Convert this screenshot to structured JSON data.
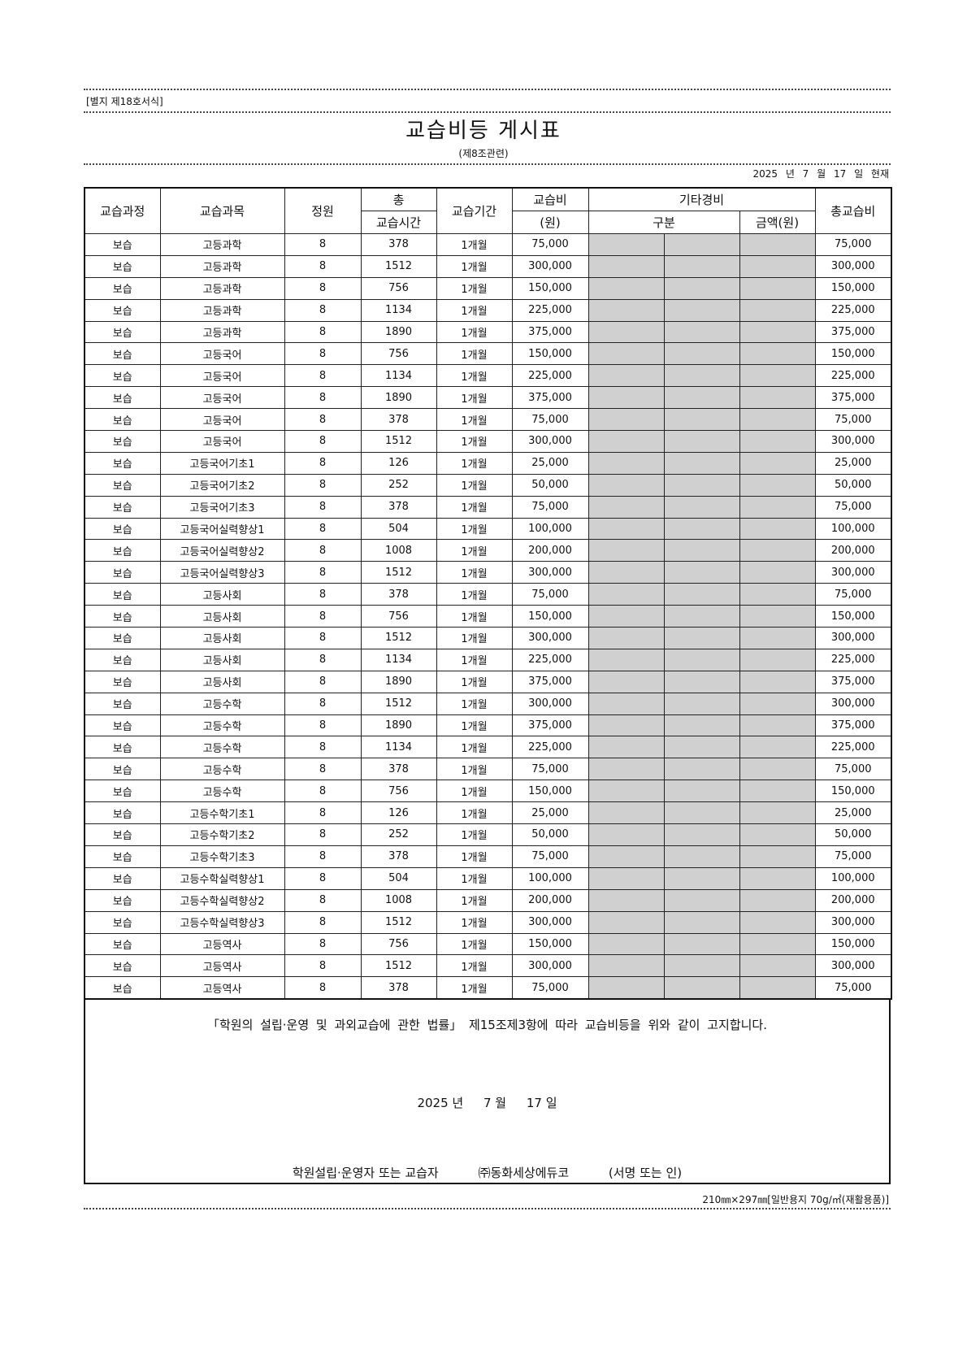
{
  "form_number": "[별지 제18호서식]",
  "title": "교습비등 게시표",
  "subtitle": "(제8조관련)",
  "as_of": "2025 년 7 월 17 일 현재",
  "headers": {
    "course": "교습과정",
    "subject": "교습과목",
    "capacity": "정원",
    "total_hours_top": "총",
    "total_hours_bottom": "교습시간",
    "period": "교습기간",
    "fee_top": "교습비",
    "fee_bottom": "(원)",
    "other": "기타경비",
    "other_type": "구분",
    "other_amount": "금액(원)",
    "total_fee": "총교습비"
  },
  "rows": [
    [
      "보습",
      "고등과학",
      "8",
      "378",
      "1개월",
      "75,000",
      "75,000"
    ],
    [
      "보습",
      "고등과학",
      "8",
      "1512",
      "1개월",
      "300,000",
      "300,000"
    ],
    [
      "보습",
      "고등과학",
      "8",
      "756",
      "1개월",
      "150,000",
      "150,000"
    ],
    [
      "보습",
      "고등과학",
      "8",
      "1134",
      "1개월",
      "225,000",
      "225,000"
    ],
    [
      "보습",
      "고등과학",
      "8",
      "1890",
      "1개월",
      "375,000",
      "375,000"
    ],
    [
      "보습",
      "고등국어",
      "8",
      "756",
      "1개월",
      "150,000",
      "150,000"
    ],
    [
      "보습",
      "고등국어",
      "8",
      "1134",
      "1개월",
      "225,000",
      "225,000"
    ],
    [
      "보습",
      "고등국어",
      "8",
      "1890",
      "1개월",
      "375,000",
      "375,000"
    ],
    [
      "보습",
      "고등국어",
      "8",
      "378",
      "1개월",
      "75,000",
      "75,000"
    ],
    [
      "보습",
      "고등국어",
      "8",
      "1512",
      "1개월",
      "300,000",
      "300,000"
    ],
    [
      "보습",
      "고등국어기초1",
      "8",
      "126",
      "1개월",
      "25,000",
      "25,000"
    ],
    [
      "보습",
      "고등국어기초2",
      "8",
      "252",
      "1개월",
      "50,000",
      "50,000"
    ],
    [
      "보습",
      "고등국어기초3",
      "8",
      "378",
      "1개월",
      "75,000",
      "75,000"
    ],
    [
      "보습",
      "고등국어실력향상1",
      "8",
      "504",
      "1개월",
      "100,000",
      "100,000"
    ],
    [
      "보습",
      "고등국어실력향상2",
      "8",
      "1008",
      "1개월",
      "200,000",
      "200,000"
    ],
    [
      "보습",
      "고등국어실력향상3",
      "8",
      "1512",
      "1개월",
      "300,000",
      "300,000"
    ],
    [
      "보습",
      "고등사회",
      "8",
      "378",
      "1개월",
      "75,000",
      "75,000"
    ],
    [
      "보습",
      "고등사회",
      "8",
      "756",
      "1개월",
      "150,000",
      "150,000"
    ],
    [
      "보습",
      "고등사회",
      "8",
      "1512",
      "1개월",
      "300,000",
      "300,000"
    ],
    [
      "보습",
      "고등사회",
      "8",
      "1134",
      "1개월",
      "225,000",
      "225,000"
    ],
    [
      "보습",
      "고등사회",
      "8",
      "1890",
      "1개월",
      "375,000",
      "375,000"
    ],
    [
      "보습",
      "고등수학",
      "8",
      "1512",
      "1개월",
      "300,000",
      "300,000"
    ],
    [
      "보습",
      "고등수학",
      "8",
      "1890",
      "1개월",
      "375,000",
      "375,000"
    ],
    [
      "보습",
      "고등수학",
      "8",
      "1134",
      "1개월",
      "225,000",
      "225,000"
    ],
    [
      "보습",
      "고등수학",
      "8",
      "378",
      "1개월",
      "75,000",
      "75,000"
    ],
    [
      "보습",
      "고등수학",
      "8",
      "756",
      "1개월",
      "150,000",
      "150,000"
    ],
    [
      "보습",
      "고등수학기초1",
      "8",
      "126",
      "1개월",
      "25,000",
      "25,000"
    ],
    [
      "보습",
      "고등수학기초2",
      "8",
      "252",
      "1개월",
      "50,000",
      "50,000"
    ],
    [
      "보습",
      "고등수학기초3",
      "8",
      "378",
      "1개월",
      "75,000",
      "75,000"
    ],
    [
      "보습",
      "고등수학실력향상1",
      "8",
      "504",
      "1개월",
      "100,000",
      "100,000"
    ],
    [
      "보습",
      "고등수학실력향상2",
      "8",
      "1008",
      "1개월",
      "200,000",
      "200,000"
    ],
    [
      "보습",
      "고등수학실력향상3",
      "8",
      "1512",
      "1개월",
      "300,000",
      "300,000"
    ],
    [
      "보습",
      "고등역사",
      "8",
      "756",
      "1개월",
      "150,000",
      "150,000"
    ],
    [
      "보습",
      "고등역사",
      "8",
      "1512",
      "1개월",
      "300,000",
      "300,000"
    ],
    [
      "보습",
      "고등역사",
      "8",
      "378",
      "1개월",
      "75,000",
      "75,000"
    ]
  ],
  "footer": {
    "notice": "「학원의 설립·운영 및 과외교습에 관한 법률」 제15조제3항에 따라 교습비등을 위와 같이 고지합니다.",
    "year": "2025 년",
    "month": "7 월",
    "day": "17 일",
    "signer_label": "학원설립·운영자 또는 교습자",
    "signer_name": "㈜동화세상에듀코",
    "sign_note": "(서명 또는 인)"
  },
  "paper_spec": "210㎜×297㎜[일반용지 70g/㎡(재활용품)]",
  "colors": {
    "empty_cell": "#d0d0d0"
  }
}
